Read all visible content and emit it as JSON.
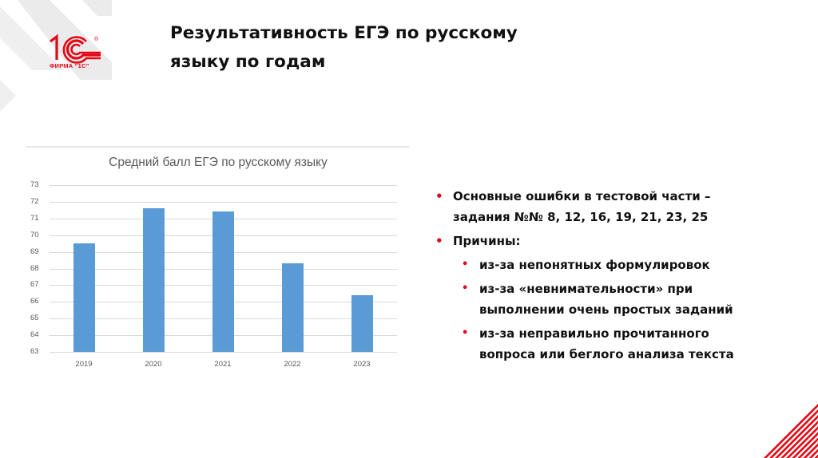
{
  "slide": {
    "title_line1": "Результативность ЕГЭ по русскому",
    "title_line2": "языку по годам",
    "logo": {
      "mark": "1С",
      "caption": "ФИРМА “1С”",
      "registered": "®",
      "color": "#e30613"
    }
  },
  "chart_data": {
    "type": "bar",
    "title": "Средний балл ЕГЭ по русскому языку",
    "categories": [
      "2019",
      "2020",
      "2021",
      "2022",
      "2023"
    ],
    "values": [
      69.5,
      71.6,
      71.4,
      68.3,
      66.4
    ],
    "xlabel": "",
    "ylabel": "",
    "ylim": [
      63,
      73
    ],
    "yticks": [
      "73",
      "72",
      "71",
      "70",
      "69",
      "68",
      "67",
      "66",
      "65",
      "64",
      "63"
    ],
    "grid": true,
    "legend": "none",
    "bar_color": "#5b9bd5"
  },
  "bullets": {
    "items": [
      {
        "level": 1,
        "lines": [
          "Основные ошибки в тестовой части –",
          "задания №№ 8, 12, 16, 19, 21, 23, 25"
        ]
      },
      {
        "level": 1,
        "lines": [
          "Причины:"
        ]
      },
      {
        "level": 2,
        "lines": [
          "из-за непонятных формулировок"
        ]
      },
      {
        "level": 2,
        "lines": [
          "из-за «невнимательности» при",
          "выполнении очень простых заданий"
        ]
      },
      {
        "level": 2,
        "lines": [
          "из-за неправильно прочитанного",
          "вопроса или беглого анализа текста"
        ]
      }
    ],
    "bullet_glyph": "•",
    "bullet_color": "#e30613"
  }
}
